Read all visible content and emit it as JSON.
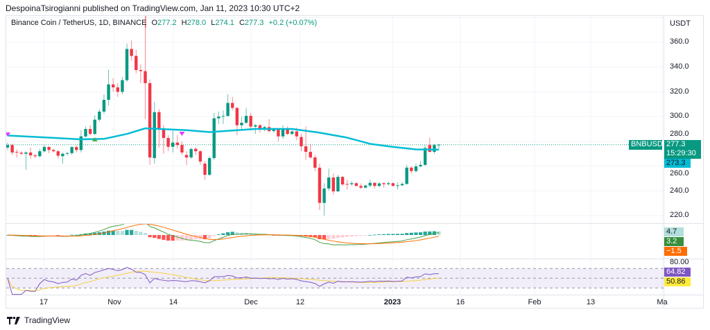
{
  "publisher_line": "DespoinaTsirogianni published on TradingView.com, Jan 11, 2023 10:30 UTC+2",
  "legend": {
    "symbol": "Binance Coin / TetherUS, 1D, BINANCE",
    "open_label": "O",
    "open": "277.2",
    "high_label": "H",
    "high": "278.0",
    "low_label": "L",
    "low": "274.1",
    "close_label": "C",
    "close": "277.3",
    "change": "+0.2 (+0.07%)"
  },
  "price_axis": {
    "currency": "USDT",
    "ticks": [
      "360.0",
      "340.0",
      "320.0",
      "300.0",
      "280.0",
      "260.0",
      "240.0",
      "220.0"
    ],
    "symbol_tag": "BNBUSDT",
    "last_price": "277.3",
    "countdown": "15:29:30",
    "ma_value": "273.3"
  },
  "macd": {
    "histogram": "4.7",
    "macd": "3.2",
    "signal": "−1.5"
  },
  "rsi": {
    "upper_band": "80.00",
    "rsi": "64.82",
    "rsi_ma": "50.86"
  },
  "time_axis": [
    "17",
    "Nov",
    "14",
    "Dec",
    "12",
    "2023",
    "16",
    "Feb",
    "13",
    "Ma"
  ],
  "footer": {
    "brand": "TradingView"
  },
  "colors": {
    "up": "#089981",
    "down": "#f23645",
    "ma": "#00bcd4",
    "macd": "#388e3c",
    "signal": "#ff6d00",
    "hist": "#b2dfdb",
    "rsi": "#7e57c2",
    "rsi_ma": "#ffeb3b"
  },
  "chart_data": {
    "type": "candlestick",
    "symbol": "BNBUSDT",
    "interval": "1D",
    "ylim": [
      210,
      380
    ],
    "ohlc": [
      [
        275,
        279,
        273,
        277
      ],
      [
        277,
        278,
        269,
        271
      ],
      [
        271.5,
        273.5,
        267,
        271
      ],
      [
        270.8,
        272,
        269,
        270
      ],
      [
        270,
        272,
        257,
        271
      ],
      [
        271,
        275,
        266,
        268.7
      ],
      [
        268.7,
        270,
        266.5,
        268
      ],
      [
        268,
        274,
        267,
        272
      ],
      [
        272,
        277,
        271,
        275.5
      ],
      [
        275.5,
        276,
        270.5,
        273
      ],
      [
        273,
        274,
        271,
        272
      ],
      [
        272,
        273,
        266,
        268.4
      ],
      [
        268,
        271,
        262,
        270
      ],
      [
        270,
        271.5,
        268.5,
        270.5
      ],
      [
        270.5,
        276,
        269,
        275.4
      ],
      [
        275.4,
        277,
        271,
        273
      ],
      [
        273,
        289,
        271,
        284
      ],
      [
        284,
        292,
        283,
        290
      ],
      [
        290,
        293,
        285,
        286
      ],
      [
        286,
        301,
        285,
        297.5
      ],
      [
        297.5,
        306,
        296,
        304
      ],
      [
        304,
        318,
        302,
        313.5
      ],
      [
        313.5,
        338,
        309,
        326
      ],
      [
        326,
        331,
        320,
        323.6
      ],
      [
        323.6,
        327,
        316,
        320
      ],
      [
        320,
        332,
        318,
        329.4
      ],
      [
        329.4,
        359,
        328,
        354.6
      ],
      [
        354.6,
        361.5,
        345,
        349
      ],
      [
        349,
        354,
        335,
        337.6
      ],
      [
        337.6,
        342,
        327,
        336.7
      ],
      [
        336.7,
        375,
        298,
        327
      ],
      [
        327,
        330,
        261,
        267
      ],
      [
        266.5,
        312,
        262,
        303.6
      ],
      [
        303.6,
        306,
        275,
        290
      ],
      [
        290,
        293,
        270,
        282.7
      ],
      [
        282.7,
        285,
        272,
        275.6
      ],
      [
        275.6,
        290,
        271,
        279
      ],
      [
        279,
        285,
        274,
        277
      ],
      [
        277,
        280,
        269,
        271
      ],
      [
        269,
        272,
        261,
        267
      ],
      [
        267,
        275,
        266,
        273.8
      ],
      [
        274,
        275,
        269,
        272
      ],
      [
        272,
        273,
        261,
        263.7
      ],
      [
        262,
        264,
        249,
        253
      ],
      [
        253,
        268,
        252,
        266.5
      ],
      [
        266.5,
        303,
        265,
        298.6
      ],
      [
        298.6,
        304,
        294,
        300
      ],
      [
        300,
        305,
        294,
        300.5
      ],
      [
        300.5,
        318,
        300,
        311
      ],
      [
        311,
        316,
        305,
        307
      ],
      [
        307,
        308,
        285,
        293
      ],
      [
        293,
        300,
        290,
        295
      ],
      [
        295,
        307,
        294,
        300.6
      ],
      [
        300.6,
        303,
        290,
        291.9
      ],
      [
        291.9,
        294,
        286,
        293
      ],
      [
        293,
        294,
        287,
        290
      ],
      [
        290,
        292.5,
        288,
        291.5
      ],
      [
        291.5,
        298,
        287,
        288.3
      ],
      [
        288.3,
        291,
        287,
        290
      ],
      [
        290,
        291,
        280,
        284
      ],
      [
        284,
        293,
        282,
        290
      ],
      [
        290,
        292,
        285,
        286
      ],
      [
        286,
        289,
        285,
        288
      ],
      [
        288,
        291,
        281,
        284
      ],
      [
        283.5,
        286,
        272,
        276
      ],
      [
        276,
        292,
        265,
        271.5
      ],
      [
        271.5,
        278,
        266,
        267
      ],
      [
        267,
        269,
        256,
        258.7
      ],
      [
        258.7,
        262,
        224.5,
        230.3
      ],
      [
        230.3,
        246,
        220,
        241.9
      ],
      [
        241.9,
        258,
        240,
        250.8
      ],
      [
        250.8,
        254,
        237,
        239.6
      ],
      [
        239.6,
        253,
        239,
        251.3
      ],
      [
        251.3,
        252,
        244,
        245.2
      ],
      [
        245.6,
        249,
        241,
        245.4
      ],
      [
        245.4,
        248,
        244,
        246.2
      ],
      [
        246.2,
        247,
        243.5,
        244
      ],
      [
        244,
        246,
        241.5,
        242.6
      ],
      [
        242.6,
        245,
        242,
        244.3
      ],
      [
        244.3,
        249,
        243,
        246.5
      ],
      [
        246.5,
        247,
        242,
        244
      ],
      [
        244,
        247,
        243,
        246
      ],
      [
        246.2,
        247,
        242.5,
        245.4
      ],
      [
        245.4,
        247.5,
        244.5,
        246.2
      ],
      [
        246.2,
        247,
        243.5,
        244
      ],
      [
        244,
        247,
        241,
        244.5
      ],
      [
        244.5,
        247,
        244,
        245.6
      ],
      [
        245.6,
        261,
        245,
        258.8
      ],
      [
        258.8,
        260,
        254,
        256
      ],
      [
        256,
        262,
        255,
        259.8
      ],
      [
        259.8,
        264,
        259,
        261
      ],
      [
        261,
        277,
        260,
        274.7
      ],
      [
        277,
        283,
        271,
        271.5
      ],
      [
        271.5,
        278,
        270,
        277
      ],
      [
        277.2,
        278,
        274.1,
        277.3
      ]
    ],
    "moving_average": [
      [
        1,
        284.7
      ],
      [
        10,
        283
      ],
      [
        17,
        281.6
      ],
      [
        22,
        282
      ],
      [
        27,
        286
      ],
      [
        31,
        290.5
      ],
      [
        34,
        290
      ],
      [
        40,
        289
      ],
      [
        45,
        287.5
      ],
      [
        47,
        288
      ],
      [
        55,
        290
      ],
      [
        63,
        290
      ],
      [
        69,
        287
      ],
      [
        75,
        283
      ],
      [
        80,
        278
      ],
      [
        85,
        275.5
      ],
      [
        90,
        273.5
      ],
      [
        95,
        273.3
      ]
    ],
    "signals": [
      {
        "bar": 1,
        "type": "sell"
      },
      {
        "bar": 20,
        "type": "buy"
      },
      {
        "bar": 39,
        "type": "sell"
      }
    ],
    "rsi_bands": [
      80,
      50,
      20
    ]
  }
}
